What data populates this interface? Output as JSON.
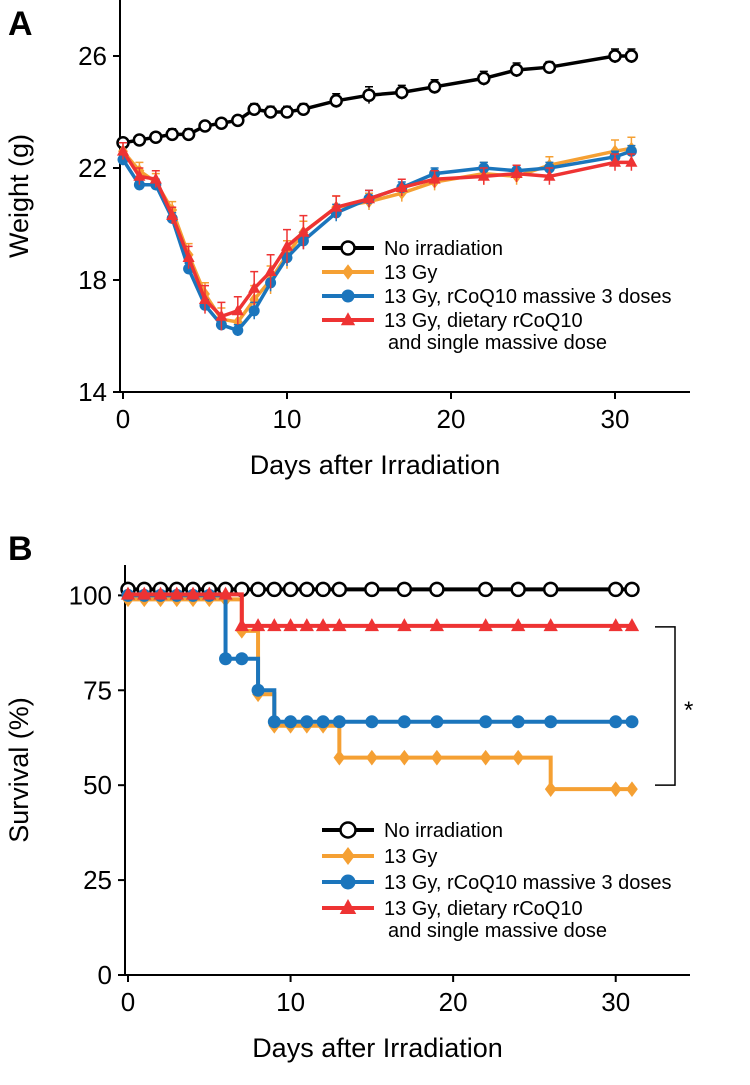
{
  "chart_data": [
    {
      "type": "line",
      "panel_label": "A",
      "xlabel": "Days after Irradiation",
      "ylabel": "Weight (g)",
      "xlim": [
        0,
        35
      ],
      "ylim": [
        14,
        28
      ],
      "xticks": [
        0,
        10,
        20,
        30
      ],
      "yticks": [
        14,
        18,
        22,
        26
      ],
      "x": [
        0,
        1,
        2,
        3,
        4,
        5,
        6,
        7,
        8,
        9,
        10,
        11,
        13,
        15,
        17,
        19,
        22,
        24,
        26,
        30,
        31
      ],
      "series": [
        {
          "name": "No irradiation",
          "color": "#000000",
          "marker": "open-circle",
          "values": [
            22.9,
            23.0,
            23.1,
            23.2,
            23.2,
            23.5,
            23.6,
            23.7,
            24.1,
            24.0,
            24.0,
            24.1,
            24.4,
            24.6,
            24.7,
            24.9,
            25.2,
            25.5,
            25.6,
            26.0,
            26.0
          ],
          "errors": [
            0.15,
            0.15,
            0.15,
            0.2,
            0.2,
            0.15,
            0.15,
            0.15,
            0.2,
            0.2,
            0.2,
            0.2,
            0.25,
            0.3,
            0.25,
            0.25,
            0.25,
            0.25,
            0.2,
            0.25,
            0.25
          ]
        },
        {
          "name": "13 Gy",
          "color": "#f5a033",
          "marker": "diamond",
          "values": [
            22.6,
            21.9,
            21.5,
            20.5,
            18.9,
            17.5,
            16.6,
            16.5,
            17.3,
            18.0,
            18.9,
            19.7,
            20.6,
            20.8,
            21.1,
            21.5,
            21.8,
            21.7,
            22.1,
            22.6,
            22.7
          ],
          "errors": [
            0.3,
            0.3,
            0.3,
            0.3,
            0.4,
            0.4,
            0.4,
            0.4,
            0.5,
            0.5,
            0.5,
            0.4,
            0.4,
            0.3,
            0.3,
            0.3,
            0.4,
            0.3,
            0.3,
            0.4,
            0.4
          ]
        },
        {
          "name": "13 Gy, rCoQ10 massive 3 doses",
          "color": "#1b75bc",
          "marker": "circle",
          "values": [
            22.3,
            21.4,
            21.4,
            20.2,
            18.4,
            17.1,
            16.4,
            16.2,
            16.9,
            17.9,
            18.8,
            19.4,
            20.4,
            20.9,
            21.3,
            21.8,
            22.0,
            21.9,
            22.0,
            22.4,
            22.6
          ],
          "errors": [
            0.2,
            0.2,
            0.2,
            0.2,
            0.2,
            0.2,
            0.2,
            0.2,
            0.3,
            0.3,
            0.3,
            0.3,
            0.3,
            0.3,
            0.2,
            0.2,
            0.2,
            0.2,
            0.2,
            0.2,
            0.2
          ]
        },
        {
          "name": "13 Gy, dietary rCoQ10\nand single massive dose",
          "color": "#ee3333",
          "marker": "triangle",
          "values": [
            22.6,
            21.7,
            21.6,
            20.3,
            18.8,
            17.3,
            16.7,
            16.9,
            17.7,
            18.3,
            19.2,
            19.7,
            20.6,
            20.9,
            21.3,
            21.6,
            21.7,
            21.8,
            21.7,
            22.2,
            22.2
          ],
          "errors": [
            0.3,
            0.3,
            0.3,
            0.3,
            0.4,
            0.5,
            0.5,
            0.5,
            0.6,
            0.6,
            0.6,
            0.6,
            0.4,
            0.3,
            0.3,
            0.3,
            0.3,
            0.3,
            0.3,
            0.3,
            0.3
          ]
        }
      ]
    },
    {
      "type": "step",
      "panel_label": "B",
      "xlabel": "Days after Irradiation",
      "ylabel": "Survival (%)",
      "xlim": [
        0,
        35
      ],
      "ylim": [
        0,
        108
      ],
      "xticks": [
        0,
        10,
        20,
        30
      ],
      "yticks": [
        0,
        25,
        50,
        75,
        100
      ],
      "annotation": "*",
      "x": [
        0,
        1,
        2,
        3,
        4,
        5,
        6,
        7,
        8,
        9,
        10,
        11,
        12,
        13,
        15,
        17,
        19,
        22,
        24,
        26,
        30,
        31
      ],
      "series": [
        {
          "name": "No irradiation",
          "color": "#000000",
          "marker": "open-circle",
          "values": [
            100,
            100,
            100,
            100,
            100,
            100,
            100,
            100,
            100,
            100,
            100,
            100,
            100,
            100,
            100,
            100,
            100,
            100,
            100,
            100,
            100,
            100
          ]
        },
        {
          "name": "13 Gy",
          "color": "#f5a033",
          "marker": "diamond",
          "values": [
            100,
            100,
            100,
            100,
            100,
            100,
            100,
            91.7,
            75,
            66.7,
            66.7,
            66.7,
            66.7,
            58.3,
            58.3,
            58.3,
            58.3,
            58.3,
            58.3,
            50,
            50,
            50
          ]
        },
        {
          "name": "13 Gy, rCoQ10 massive 3 doses",
          "color": "#1b75bc",
          "marker": "circle",
          "values": [
            100,
            100,
            100,
            100,
            100,
            100,
            83.3,
            83.3,
            75,
            66.7,
            66.7,
            66.7,
            66.7,
            66.7,
            66.7,
            66.7,
            66.7,
            66.7,
            66.7,
            66.7,
            66.7,
            66.7
          ]
        },
        {
          "name": "13 Gy, dietary rCoQ10\nand  single massive dose",
          "color": "#ee3333",
          "marker": "triangle",
          "values": [
            100,
            100,
            100,
            100,
            100,
            100,
            100,
            91.7,
            91.7,
            91.7,
            91.7,
            91.7,
            91.7,
            91.7,
            91.7,
            91.7,
            91.7,
            91.7,
            91.7,
            91.7,
            91.7,
            91.7
          ]
        }
      ]
    }
  ]
}
